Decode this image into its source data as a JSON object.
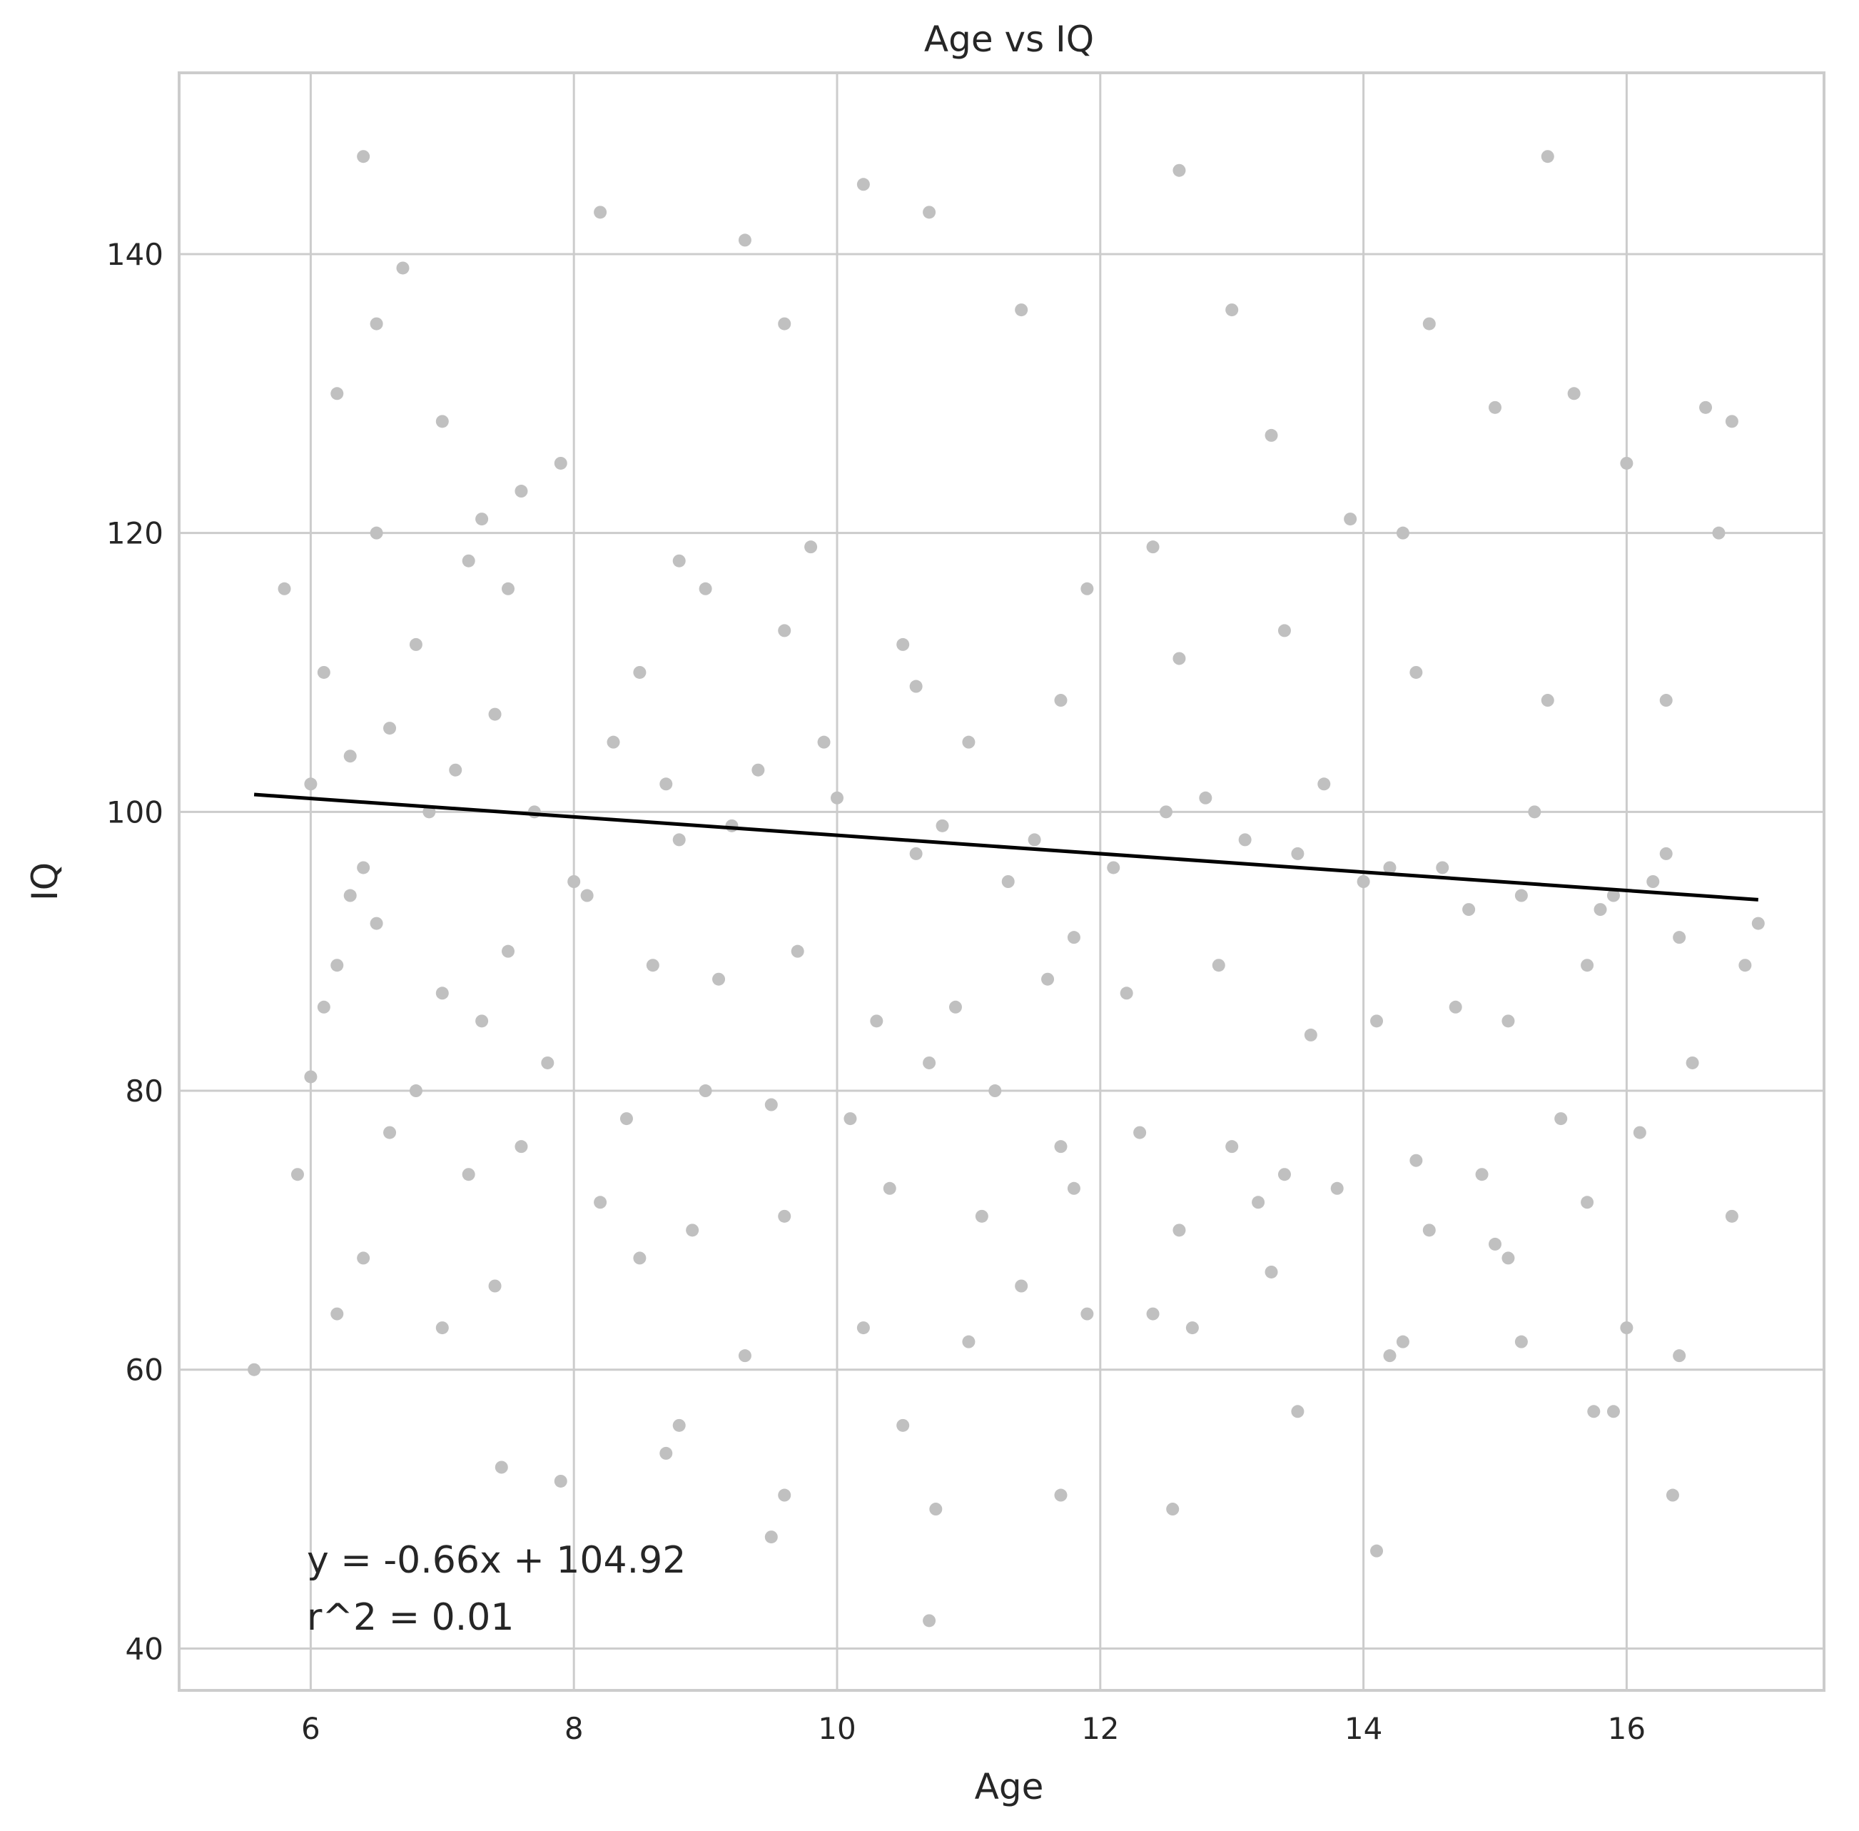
{
  "chart_data": {
    "type": "scatter",
    "title": "Age vs IQ",
    "xlabel": "Age",
    "ylabel": "IQ",
    "xlim": [
      5.0,
      17.5
    ],
    "ylim": [
      37.0,
      153.0
    ],
    "xticks": [
      6,
      8,
      10,
      12,
      14,
      16
    ],
    "yticks": [
      40,
      60,
      80,
      100,
      120,
      140
    ],
    "grid": true,
    "legend": "none",
    "point_color": "#c0c0c0",
    "line_color": "#000000",
    "regression": {
      "slope": -0.66,
      "intercept": 104.92,
      "r2": 0.01,
      "x_range": [
        5.57,
        17.0
      ]
    },
    "annotations": [
      "y = -0.66x + 104.92",
      "r^2 = 0.01"
    ],
    "series": [
      {
        "x": [
          5.57,
          5.9,
          6.1,
          6.2,
          6.4,
          6.5,
          6.7,
          7.0,
          7.3,
          7.6,
          8.2,
          9.3,
          9.6,
          10.2,
          10.7,
          11.4,
          12.6,
          13.0,
          14.5,
          15.4,
          16.2,
          16.8,
          6.3,
          6.8,
          7.2,
          7.9,
          8.5,
          9.0,
          9.8,
          10.5,
          11.0,
          11.9,
          12.4,
          13.3,
          13.9,
          14.3,
          15.0,
          15.6,
          16.0,
          16.6,
          6.0,
          6.4,
          6.9,
          7.4,
          8.0,
          8.7,
          9.2,
          9.9,
          10.6,
          11.3,
          11.8,
          12.5,
          13.1,
          13.7,
          14.2,
          14.8,
          15.3,
          15.9,
          16.4,
          17.0,
          6.1,
          6.6,
          7.1,
          7.7,
          8.3,
          8.8,
          9.4,
          10.0,
          10.8,
          11.5,
          12.1,
          12.8,
          13.5,
          14.0,
          14.6,
          15.2,
          15.8,
          16.3,
          16.9,
          6.2,
          6.5,
          7.0,
          7.5,
          8.1,
          8.6,
          9.1,
          9.7,
          10.3,
          10.9,
          11.6,
          12.2,
          12.9,
          13.6,
          14.1,
          14.7,
          15.1,
          15.7,
          16.5,
          5.8,
          6.3,
          6.8,
          7.3,
          7.8,
          8.4,
          9.0,
          9.5,
          10.1,
          10.7,
          11.2,
          11.7,
          12.3,
          13.0,
          13.4,
          14.4,
          14.9,
          15.5,
          16.1,
          16.7,
          6.0,
          6.6,
          7.2,
          7.6,
          8.2,
          8.9,
          9.6,
          10.4,
          11.1,
          11.8,
          12.6,
          13.2,
          13.8,
          14.5,
          15.0,
          15.7,
          16.4,
          6.4,
          7.4,
          8.5,
          9.3,
          10.2,
          11.0,
          11.9,
          12.7,
          13.5,
          14.3,
          15.2,
          16.0,
          16.8,
          6.2,
          7.0,
          7.9,
          8.7,
          9.5,
          10.5,
          11.4,
          12.4,
          13.3,
          14.2,
          15.1,
          15.9,
          6.5,
          7.5,
          8.8,
          9.6,
          10.6,
          11.7,
          12.6,
          13.4,
          14.4,
          15.4,
          16.3,
          7.45,
          8.8,
          9.6,
          10.75,
          11.7,
          12.55,
          14.1,
          16.35,
          10.7,
          15.75
        ],
        "y": [
          60,
          74,
          86,
          130,
          147,
          135,
          139,
          128,
          121,
          123,
          143,
          141,
          135,
          145,
          143,
          136,
          146,
          136,
          135,
          147,
          95,
          128,
          104,
          112,
          118,
          125,
          110,
          116,
          119,
          112,
          105,
          116,
          119,
          127,
          121,
          120,
          129,
          130,
          125,
          129,
          102,
          96,
          100,
          107,
          95,
          102,
          99,
          105,
          97,
          95,
          91,
          100,
          98,
          102,
          96,
          93,
          100,
          94,
          91,
          92,
          110,
          106,
          103,
          100,
          105,
          98,
          103,
          101,
          99,
          98,
          96,
          101,
          97,
          95,
          96,
          94,
          93,
          97,
          89,
          89,
          92,
          87,
          90,
          94,
          89,
          88,
          90,
          85,
          86,
          88,
          87,
          89,
          84,
          85,
          86,
          85,
          89,
          82,
          116,
          94,
          80,
          85,
          82,
          78,
          80,
          79,
          78,
          82,
          80,
          76,
          77,
          76,
          74,
          75,
          74,
          78,
          77,
          120,
          81,
          77,
          74,
          76,
          72,
          70,
          71,
          73,
          71,
          73,
          70,
          72,
          73,
          70,
          69,
          72,
          61,
          68,
          66,
          68,
          61,
          63,
          62,
          64,
          63,
          57,
          62,
          62,
          63,
          71,
          64,
          63,
          52,
          54,
          48,
          56,
          66,
          64,
          67,
          61,
          68,
          57,
          120,
          116,
          118,
          113,
          109,
          108,
          111,
          113,
          110,
          108,
          108,
          53,
          56,
          51,
          50,
          51,
          50,
          47,
          51,
          42,
          57
        ]
      }
    ]
  }
}
